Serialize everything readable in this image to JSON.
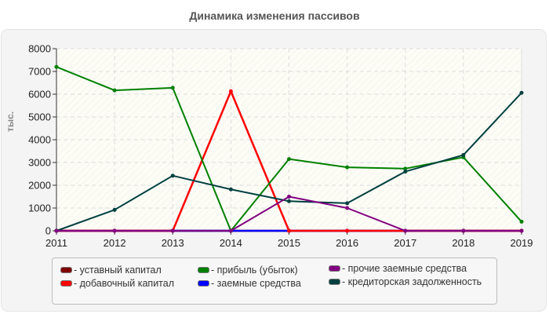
{
  "chart_data": {
    "type": "line",
    "title": "Динамика изменения пассивов",
    "xlabel": "",
    "ylabel": "тыс.",
    "ylim": [
      0,
      8000
    ],
    "yticks": [
      0,
      1000,
      2000,
      3000,
      4000,
      5000,
      6000,
      7000,
      8000
    ],
    "grid": true,
    "legend_position": "bottom",
    "categories": [
      "2011",
      "2012",
      "2013",
      "2014",
      "2015",
      "2016",
      "2017",
      "2018",
      "2019"
    ],
    "series": [
      {
        "name": "уставный капитал",
        "color": "#800000",
        "values": [
          0,
          0,
          0,
          0,
          0,
          0,
          0,
          0,
          0
        ]
      },
      {
        "name": "добавочный капитал",
        "color": "#ff0000",
        "values": [
          0,
          0,
          0,
          6130,
          0,
          0,
          0,
          0,
          0
        ]
      },
      {
        "name": "прибыль (убыток)",
        "color": "#008000",
        "values": [
          7200,
          6170,
          6280,
          0,
          3150,
          2790,
          2730,
          3230,
          400
        ]
      },
      {
        "name": "заемные средства",
        "color": "#0000ff",
        "values": [
          0,
          0,
          0,
          0,
          0,
          0,
          0,
          0,
          0
        ]
      },
      {
        "name": "прочие заемные средства",
        "color": "#800080",
        "values": [
          0,
          0,
          0,
          0,
          1500,
          1000,
          0,
          0,
          0
        ]
      },
      {
        "name": "кредиторская задолженность",
        "color": "#004040",
        "values": [
          0,
          920,
          2420,
          1820,
          1300,
          1210,
          2600,
          3330,
          6060
        ]
      }
    ]
  },
  "legend": {
    "prefix": "- "
  }
}
